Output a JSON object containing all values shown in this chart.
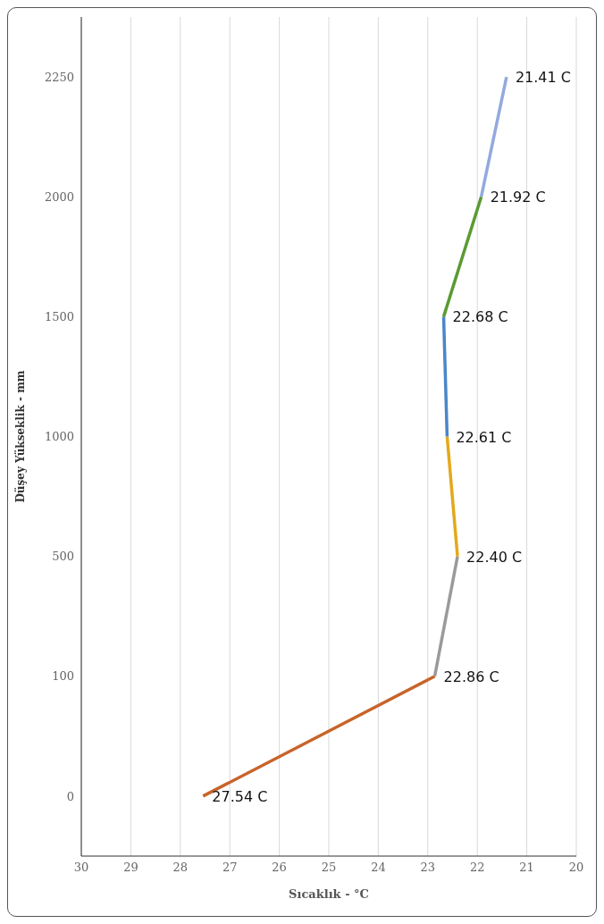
{
  "chart_data": {
    "type": "line",
    "orientation": "horizontal",
    "xlabel": "Sıcaklık - °C",
    "ylabel": "Düşey Yükseklik - mm",
    "categories": [
      "2250",
      "2000",
      "1500",
      "1000",
      "500",
      "100",
      "0"
    ],
    "series": [
      {
        "color": "#c8642a",
        "values": [
          null,
          null,
          null,
          null,
          null,
          22.86,
          27.54
        ],
        "value_labels": [
          null,
          null,
          null,
          null,
          null,
          null,
          "27.54 C"
        ]
      },
      {
        "color": "#9a9a9a",
        "values": [
          null,
          null,
          null,
          null,
          22.4,
          22.86,
          null
        ],
        "value_labels": [
          null,
          null,
          null,
          null,
          null,
          "22.86 C",
          null
        ]
      },
      {
        "color": "#e3a91c",
        "values": [
          null,
          null,
          null,
          22.61,
          22.4,
          null,
          null
        ],
        "value_labels": [
          null,
          null,
          null,
          null,
          "22.40 C",
          null,
          null
        ]
      },
      {
        "color": "#4a86c8",
        "values": [
          null,
          null,
          22.68,
          22.61,
          null,
          null,
          null
        ],
        "value_labels": [
          null,
          null,
          null,
          "22.61 C",
          null,
          null,
          null
        ]
      },
      {
        "color": "#5b9a32",
        "values": [
          null,
          21.92,
          22.68,
          null,
          null,
          null,
          null
        ],
        "value_labels": [
          null,
          null,
          "22.68 C",
          null,
          null,
          null,
          null
        ]
      },
      {
        "color": "#93a9de",
        "values": [
          21.41,
          21.92,
          null,
          null,
          null,
          null,
          null
        ],
        "value_labels": [
          "21.41 C",
          "21.92 C",
          null,
          null,
          null,
          null,
          null
        ]
      }
    ],
    "xlim": [
      30,
      20
    ],
    "xticks": [
      30,
      29,
      28,
      27,
      26,
      25,
      24,
      23,
      22,
      21,
      20
    ],
    "grid": "x",
    "line_style": "solid"
  }
}
